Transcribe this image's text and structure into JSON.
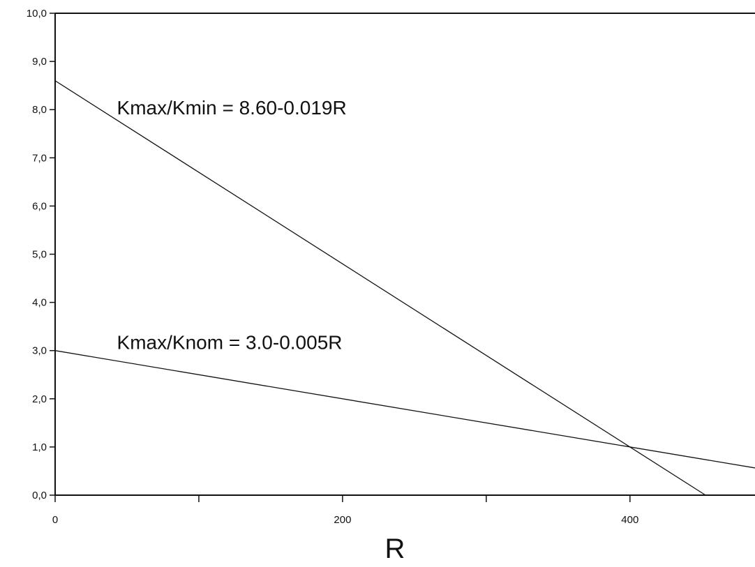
{
  "chart_data": {
    "type": "line",
    "title": "",
    "xlabel": "R",
    "ylabel": "",
    "xlim": [
      0,
      487
    ],
    "ylim": [
      0,
      10
    ],
    "grid": false,
    "x_ticks": [
      0,
      200,
      400
    ],
    "x_tick_labels": [
      "0",
      "200",
      "400"
    ],
    "x_minor_ticks": [
      100,
      300
    ],
    "y_ticks": [
      0,
      1,
      2,
      3,
      4,
      5,
      6,
      7,
      8,
      9,
      10
    ],
    "y_tick_labels": [
      "0,0",
      "1,0",
      "2,0",
      "3,0",
      "4,0",
      "5,0",
      "6,0",
      "7,0",
      "8,0",
      "9,0",
      "10,0"
    ],
    "series": [
      {
        "x": [
          0,
          452.6
        ],
        "y": [
          8.6,
          0.0
        ]
      },
      {
        "x": [
          0,
          487
        ],
        "y": [
          3.0,
          0.565
        ]
      }
    ],
    "annotations": [
      {
        "text": "Kmax/Kmin = 8.60-0.019R",
        "x": 43,
        "y": 7.9
      },
      {
        "text": "Kmax/Knom = 3.0-0.005R",
        "x": 43,
        "y": 3.03
      }
    ]
  }
}
